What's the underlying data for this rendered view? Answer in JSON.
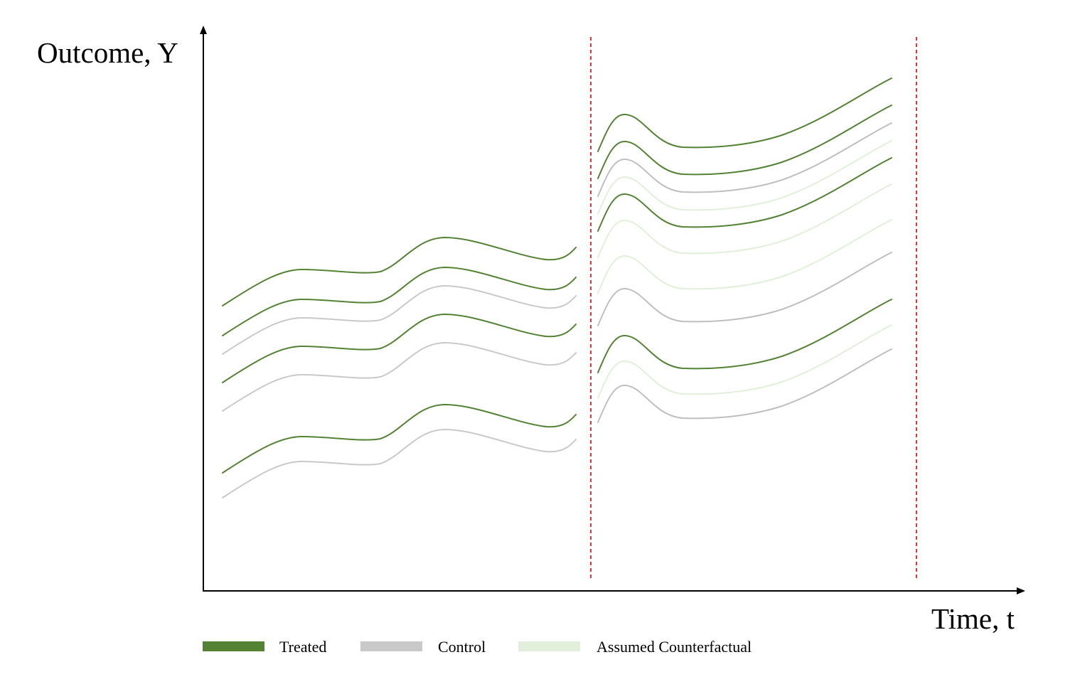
{
  "axes": {
    "y_label": "Outcome, Y",
    "x_label": "Time, t"
  },
  "colors": {
    "treated": "#548235",
    "control": "#C9C9C9",
    "control_post": "#BFBFBF",
    "counterfactual": "#E2EFDA",
    "axis": "#000000",
    "cutoff": "#E00000"
  },
  "legend": [
    {
      "key": "treated",
      "label": "Treated"
    },
    {
      "key": "control",
      "label": "Control"
    },
    {
      "key": "counterfactual",
      "label": "Assumed Counterfactual"
    }
  ],
  "periods": {
    "pre": {
      "lines": [
        {
          "group": "treated",
          "level": 0
        },
        {
          "group": "treated",
          "level": 1
        },
        {
          "group": "control",
          "level": 2
        },
        {
          "group": "treated",
          "level": 3
        },
        {
          "group": "control",
          "level": 4
        },
        {
          "group": "treated",
          "level": 5
        },
        {
          "group": "control",
          "level": 6
        }
      ]
    },
    "post": {
      "lines": [
        {
          "group": "treated",
          "level": 0
        },
        {
          "group": "treated",
          "level": 1
        },
        {
          "group": "control_post",
          "level": 2
        },
        {
          "group": "counterfactual",
          "level": 3
        },
        {
          "group": "treated",
          "level": 4
        },
        {
          "group": "counterfactual",
          "level": 5
        },
        {
          "group": "counterfactual",
          "level": 6
        },
        {
          "group": "control_post",
          "level": 7
        },
        {
          "group": "treated",
          "level": 8
        },
        {
          "group": "counterfactual",
          "level": 9
        },
        {
          "group": "control_post",
          "level": 10
        }
      ]
    }
  }
}
